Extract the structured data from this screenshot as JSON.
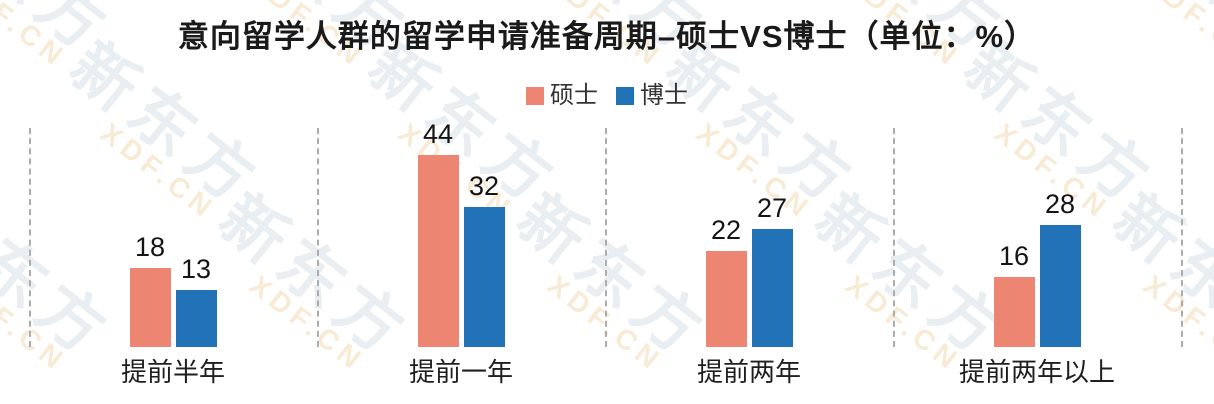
{
  "title": "意向留学人群的留学申请准备周期–硕士VS博士（单位：%）",
  "watermark": {
    "line1": "新东方",
    "line2": "XDF.CN",
    "cn_color": "#E9EEF2",
    "en_color": "#F8EBD6"
  },
  "colors": {
    "master_bar": "#EC8572",
    "phd_bar": "#2272B8",
    "separator": "#ACACAC",
    "title_text": "#1A1A1A",
    "label_text": "#1F1F1F"
  },
  "legend": {
    "items": [
      {
        "label": "硕士",
        "color": "#EC8572"
      },
      {
        "label": "博士",
        "color": "#2272B8"
      }
    ]
  },
  "chart_data": {
    "type": "bar",
    "title": "意向留学人群的留学申请准备周期–硕士VS博士",
    "unit": "%",
    "categories": [
      "提前半年",
      "提前一年",
      "提前两年",
      "提前两年以上"
    ],
    "series": [
      {
        "name": "硕士",
        "color": "#EC8572",
        "values": [
          18,
          44,
          22,
          16
        ]
      },
      {
        "name": "博士",
        "color": "#2272B8",
        "values": [
          13,
          32,
          27,
          28
        ]
      }
    ],
    "ylim": [
      0,
      50
    ],
    "grid": false,
    "value_labels": true,
    "legend_position": "top-center",
    "group_separators": "dashed-vertical-lines"
  }
}
